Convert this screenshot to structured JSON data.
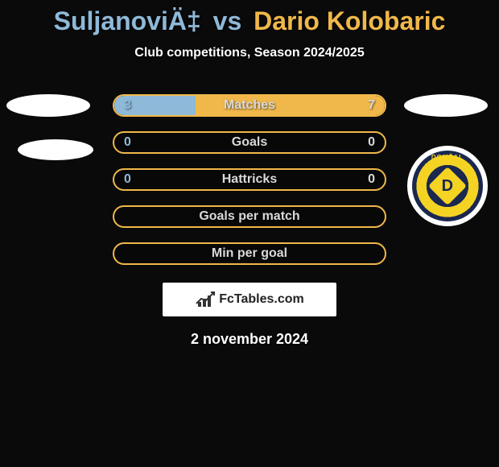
{
  "title": {
    "player1": "SuljanoviÄ‡",
    "vs": "vs",
    "player2": "Dario Kolobaric",
    "player1_color": "#8fb9d8",
    "player2_color": "#f0b84a"
  },
  "subtitle": "Club competitions, Season 2024/2025",
  "accent_left": "#8fb9d8",
  "accent_right": "#f0b84a",
  "text_color": "#d9d9d9",
  "background_color": "#0a0a0a",
  "stats": [
    {
      "label": "Matches",
      "left_value": "3",
      "right_value": "7",
      "left_pct": 30,
      "right_pct": 70,
      "has_values": true,
      "fill": true
    },
    {
      "label": "Goals",
      "left_value": "0",
      "right_value": "0",
      "left_pct": 0,
      "right_pct": 0,
      "has_values": true,
      "fill": false
    },
    {
      "label": "Hattricks",
      "left_value": "0",
      "right_value": "0",
      "left_pct": 0,
      "right_pct": 0,
      "has_values": true,
      "fill": false
    },
    {
      "label": "Goals per match",
      "left_value": "",
      "right_value": "",
      "left_pct": 0,
      "right_pct": 0,
      "has_values": false,
      "fill": false
    },
    {
      "label": "Min per goal",
      "left_value": "",
      "right_value": "",
      "left_pct": 0,
      "right_pct": 0,
      "has_values": false,
      "fill": false
    }
  ],
  "club_logo_text": "DOMŽAL",
  "club_logo_letter": "D",
  "footer_logo": "FcTables.com",
  "date": "2 november 2024"
}
